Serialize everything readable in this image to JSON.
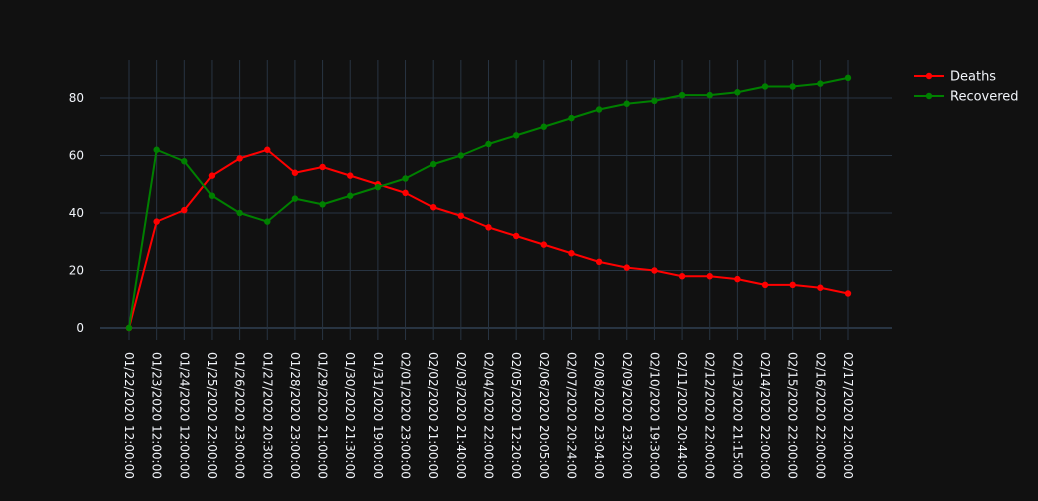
{
  "colors": {
    "background": "#111111",
    "grid": "#283442",
    "text": "#f2f5fa",
    "deaths": "#ff0000",
    "recovered": "#008000"
  },
  "chart_data": {
    "type": "line",
    "title": "",
    "xlabel": "",
    "ylabel": "",
    "grid": true,
    "legend_position": "top-right",
    "ylim": [
      -4,
      92
    ],
    "yticks": [
      0,
      20,
      40,
      60,
      80
    ],
    "x": [
      "01/22/2020 12:00:00",
      "01/23/2020 12:00:00",
      "01/24/2020 12:00:00",
      "01/25/2020 22:00:00",
      "01/26/2020 23:00:00",
      "01/27/2020 20:30:00",
      "01/28/2020 23:00:00",
      "01/29/2020 21:00:00",
      "01/30/2020 21:30:00",
      "01/31/2020 19:00:00",
      "02/01/2020 23:00:00",
      "02/02/2020 21:00:00",
      "02/03/2020 21:40:00",
      "02/04/2020 22:00:00",
      "02/05/2020 12:20:00",
      "02/06/2020 20:05:00",
      "02/07/2020 20:24:00",
      "02/08/2020 23:04:00",
      "02/09/2020 23:20:00",
      "02/10/2020 19:30:00",
      "02/11/2020 20:44:00",
      "02/12/2020 22:00:00",
      "02/13/2020 21:15:00",
      "02/14/2020 22:00:00",
      "02/15/2020 22:00:00",
      "02/16/2020 22:00:00",
      "02/17/2020 22:00:00"
    ],
    "series": [
      {
        "name": "Deaths",
        "color": "#ff0000",
        "values": [
          0,
          37,
          41,
          53,
          59,
          62,
          54,
          56,
          53,
          50,
          47,
          42,
          39,
          35,
          32,
          29,
          26,
          23,
          21,
          20,
          18,
          18,
          17,
          15,
          15,
          14,
          12
        ]
      },
      {
        "name": "Recovered",
        "color": "#008000",
        "values": [
          0,
          62,
          58,
          46,
          40,
          37,
          45,
          43,
          46,
          49,
          52,
          57,
          60,
          64,
          67,
          70,
          73,
          76,
          78,
          79,
          81,
          81,
          82,
          84,
          84,
          85,
          87
        ]
      }
    ]
  }
}
